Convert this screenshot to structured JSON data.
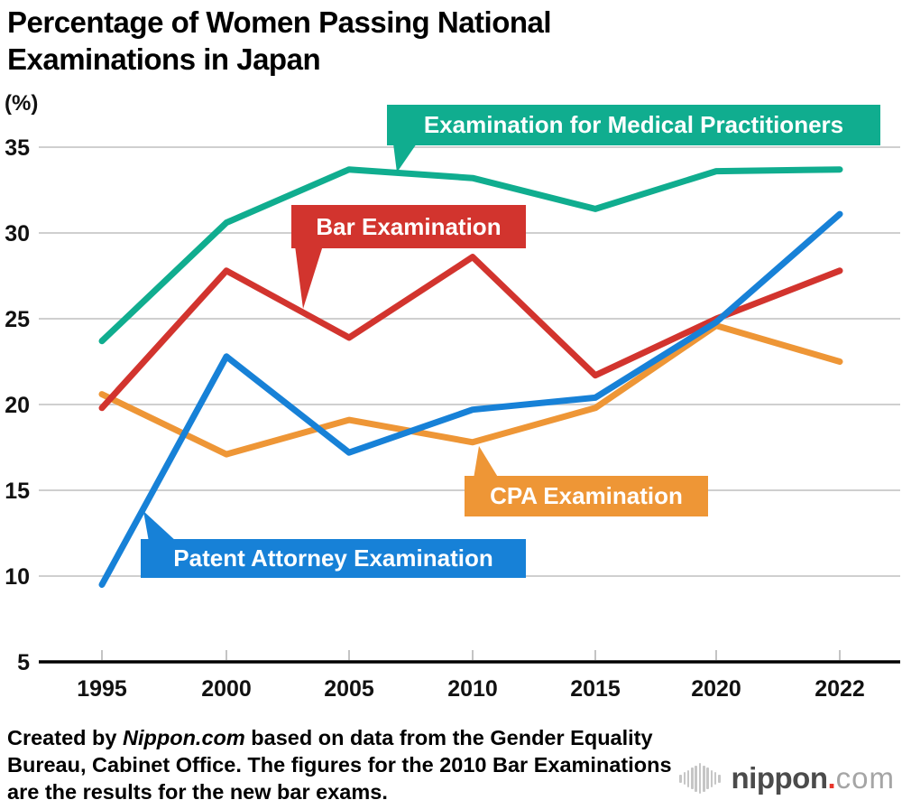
{
  "title": {
    "line1": "Percentage of Women Passing National",
    "line2": "Examinations in Japan"
  },
  "y_axis": {
    "unit": "(%)",
    "ticks": [
      35,
      30,
      25,
      20,
      15,
      10,
      5
    ],
    "min": 5,
    "max": 35
  },
  "x_axis": {
    "labels": [
      "1995",
      "2000",
      "2005",
      "2010",
      "2015",
      "2020",
      "2022"
    ]
  },
  "chart_data": {
    "type": "line",
    "title": "Percentage of Women Passing National Examinations in Japan",
    "unit": "%",
    "x": [
      1995,
      2000,
      2005,
      2010,
      2015,
      2020,
      2022
    ],
    "x_labels": [
      "1995",
      "2000",
      "2005",
      "2010",
      "2015",
      "2020",
      "2022"
    ],
    "ylim": [
      5,
      35
    ],
    "grid": "horizontal",
    "legend_position": "inline-callouts",
    "series": [
      {
        "name": "Examination for Medical Practitioners",
        "color": "#10ad8f",
        "values": [
          23.7,
          30.6,
          33.7,
          33.2,
          31.4,
          33.6,
          33.7
        ]
      },
      {
        "name": "Bar Examination",
        "color": "#d2342e",
        "values": [
          19.8,
          27.8,
          23.9,
          28.6,
          21.7,
          25.0,
          27.8
        ]
      },
      {
        "name": "CPA Examination",
        "color": "#ee9636",
        "values": [
          20.6,
          17.1,
          19.1,
          17.8,
          19.8,
          24.6,
          22.5
        ]
      },
      {
        "name": "Patent Attorney Examination",
        "color": "#1781d7",
        "values": [
          9.5,
          22.8,
          17.2,
          19.7,
          20.4,
          24.8,
          31.1
        ]
      }
    ]
  },
  "footer": {
    "line1_pre": "Created by ",
    "brand": "Nippon.com",
    "line1_post": " based on data from the Gender Equality",
    "line2": "Bureau, Cabinet Office. The figures for the 2010 Bar Examinations",
    "line3": "are the results for the new bar exams."
  },
  "logo": {
    "wave_icon": "audio-wave-icon",
    "name": "nippon",
    "dot": ".",
    "suffix": "com"
  }
}
